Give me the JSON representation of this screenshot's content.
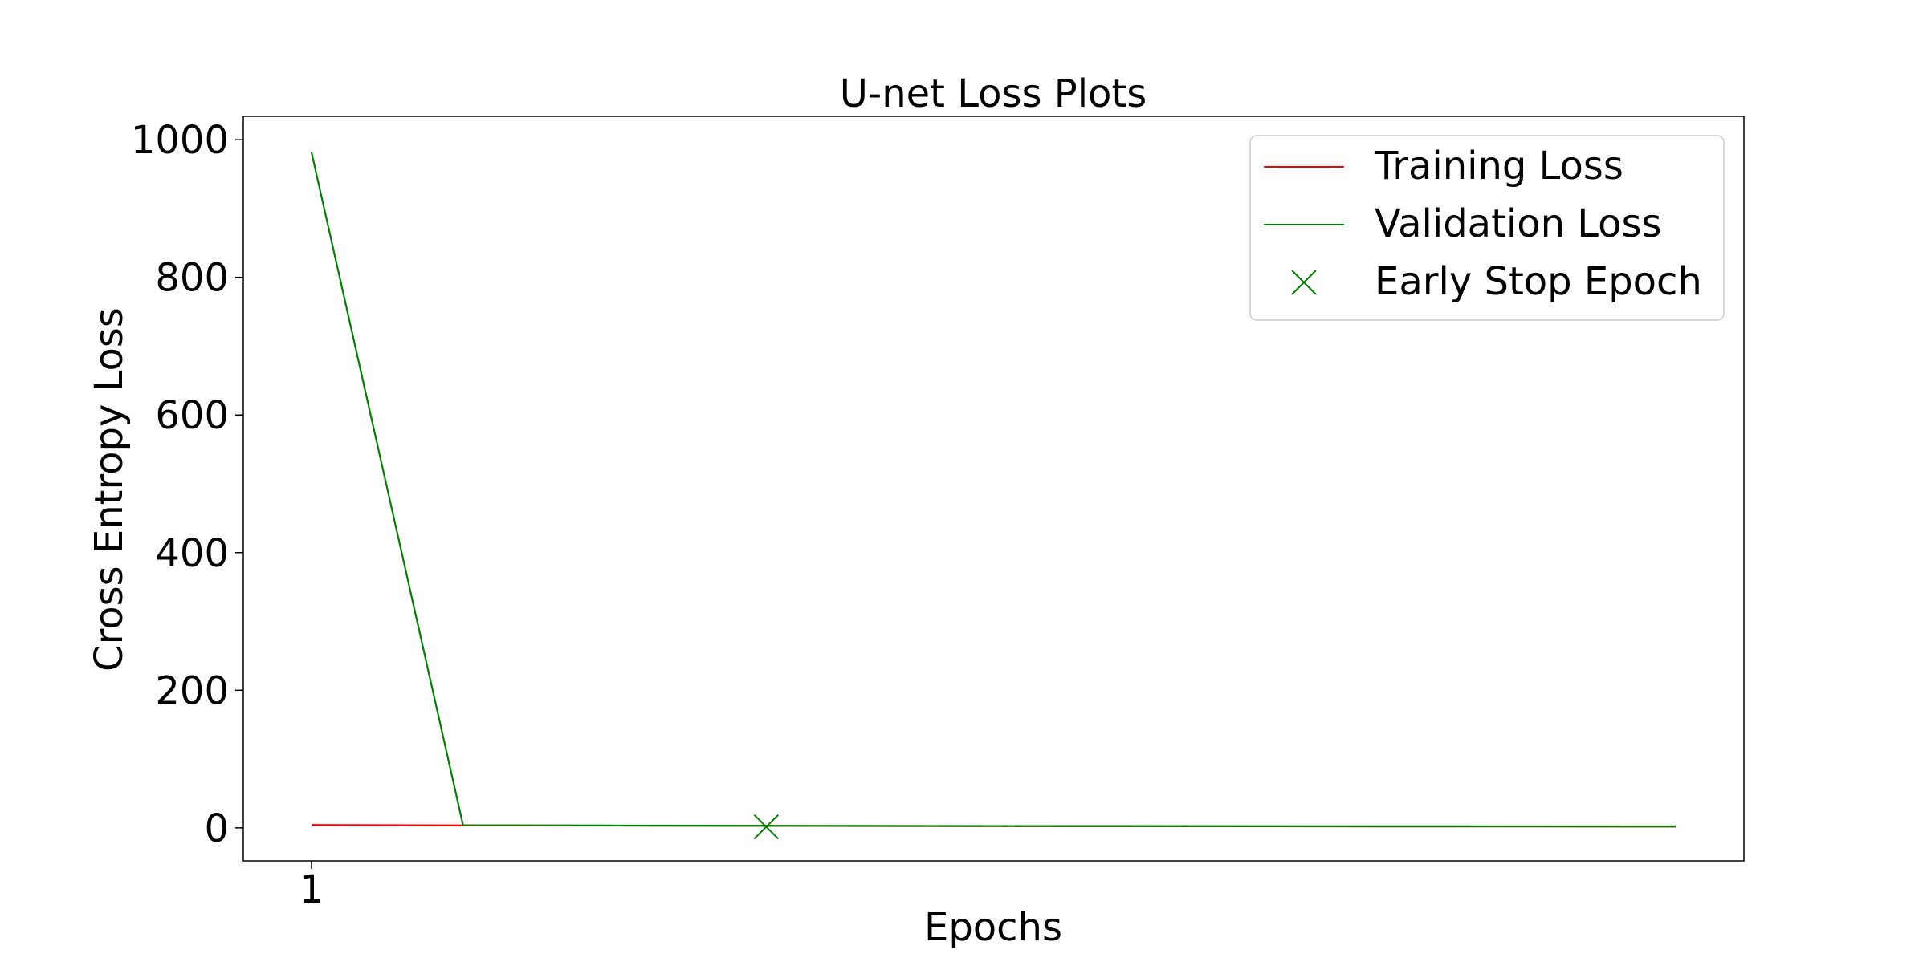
{
  "chart_data": {
    "type": "line",
    "title": "U-net Loss Plots",
    "xlabel": "Epochs",
    "ylabel": "Cross Entropy Loss",
    "x": [
      1,
      2,
      3,
      4,
      5,
      6,
      7,
      8,
      9,
      10
    ],
    "xlim": [
      0.55,
      10.45
    ],
    "ylim": [
      -48,
      1034
    ],
    "x_ticks": [
      1
    ],
    "x_tick_labels": [
      "1"
    ],
    "y_ticks": [
      0,
      200,
      400,
      600,
      800,
      1000
    ],
    "y_tick_labels": [
      "0",
      "200",
      "400",
      "600",
      "800",
      "1000"
    ],
    "grid": false,
    "legend_position": "top-right",
    "series": [
      {
        "name": "Training Loss",
        "color": "#ff0000",
        "values": [
          4.2,
          3.6,
          3.2,
          2.9,
          2.6,
          2.4,
          2.2,
          2.0,
          1.9,
          1.8
        ]
      },
      {
        "name": "Validation Loss",
        "color": "#008000",
        "values": [
          982,
          3.8,
          3.4,
          3.0,
          2.8,
          2.6,
          2.4,
          2.3,
          2.2,
          2.1
        ]
      }
    ],
    "markers": [
      {
        "name": "Early Stop Epoch",
        "color": "#008000",
        "symbol": "x",
        "x": 4,
        "y": 1.5
      }
    ]
  }
}
